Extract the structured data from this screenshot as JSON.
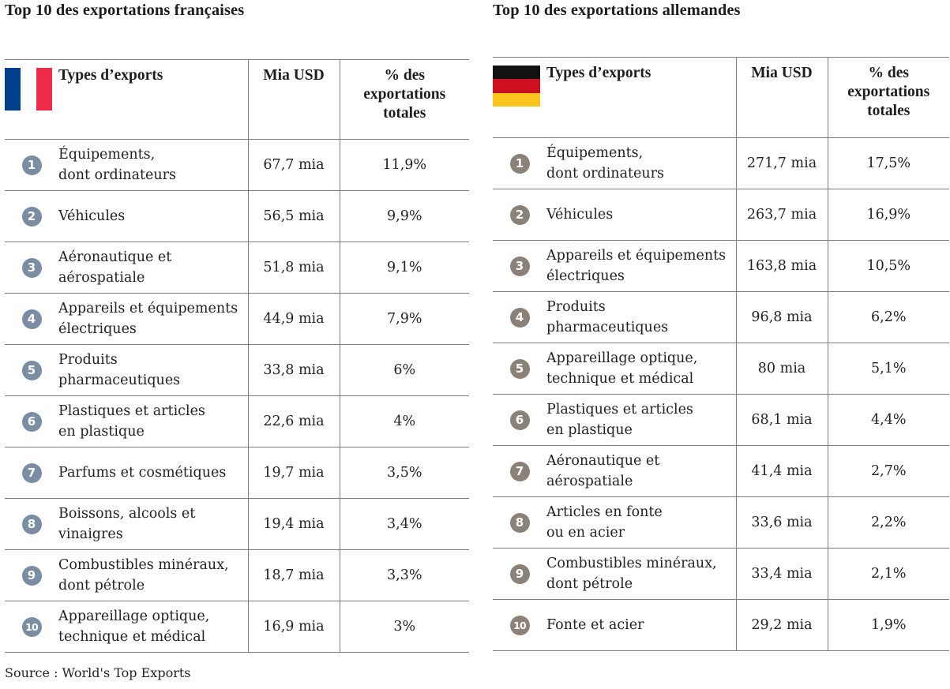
{
  "colors": {
    "flag_fr": [
      "#003f8a",
      "#ffffff",
      "#ee2c4a"
    ],
    "flag_de": [
      "#111111",
      "#cc1020",
      "#f9c51c"
    ],
    "rank_fr": "#7b8da2",
    "rank_de": "#8a8279",
    "rule": "#7d7d7d"
  },
  "france": {
    "title": "Top 10 des exportations françaises",
    "flag_icon": "france-flag-icon",
    "headers": {
      "type": "Types d’exports",
      "mia": "Mia USD",
      "pct": "% des\nexportations\ntotales"
    },
    "rows": [
      {
        "rank": "1",
        "type": "Équipements,\ndont ordinateurs",
        "mia": "67,7 mia",
        "pct": "11,9%"
      },
      {
        "rank": "2",
        "type": "Véhicules",
        "mia": "56,5 mia",
        "pct": "9,9%"
      },
      {
        "rank": "3",
        "type": "Aéronautique et\naérospatiale",
        "mia": "51,8 mia",
        "pct": "9,1%"
      },
      {
        "rank": "4",
        "type": "Appareils et équipements\nélectriques",
        "mia": "44,9 mia",
        "pct": "7,9%"
      },
      {
        "rank": "5",
        "type": "Produits\npharmaceutiques",
        "mia": "33,8 mia",
        "pct": "6%"
      },
      {
        "rank": "6",
        "type": "Plastiques et articles\nen plastique",
        "mia": "22,6 mia",
        "pct": "4%"
      },
      {
        "rank": "7",
        "type": "Parfums et cosmétiques",
        "mia": "19,7 mia",
        "pct": "3,5%"
      },
      {
        "rank": "8",
        "type": "Boissons, alcools et\nvinaigres",
        "mia": "19,4 mia",
        "pct": "3,4%"
      },
      {
        "rank": "9",
        "type": "Combustibles minéraux,\ndont pétrole",
        "mia": "18,7 mia",
        "pct": "3,3%"
      },
      {
        "rank": "10",
        "type": "Appareillage optique,\ntechnique et médical",
        "mia": "16,9 mia",
        "pct": "3%"
      }
    ]
  },
  "germany": {
    "title": "Top 10 des exportations allemandes",
    "flag_icon": "germany-flag-icon",
    "headers": {
      "type": "Types d’exports",
      "mia": "Mia USD",
      "pct": "% des\nexportations\ntotales"
    },
    "rows": [
      {
        "rank": "1",
        "type": "Équipements,\ndont ordinateurs",
        "mia": "271,7 mia",
        "pct": "17,5%"
      },
      {
        "rank": "2",
        "type": "Véhicules",
        "mia": "263,7 mia",
        "pct": "16,9%"
      },
      {
        "rank": "3",
        "type": "Appareils et équipements\nélectriques",
        "mia": "163,8 mia",
        "pct": "10,5%"
      },
      {
        "rank": "4",
        "type": "Produits\npharmaceutiques",
        "mia": "96,8 mia",
        "pct": "6,2%"
      },
      {
        "rank": "5",
        "type": "Appareillage optique,\ntechnique et médical",
        "mia": "80 mia",
        "pct": "5,1%"
      },
      {
        "rank": "6",
        "type": "Plastiques et articles\nen plastique",
        "mia": "68,1 mia",
        "pct": "4,4%"
      },
      {
        "rank": "7",
        "type": "Aéronautique et\naérospatiale",
        "mia": "41,4 mia",
        "pct": "2,7%"
      },
      {
        "rank": "8",
        "type": "Articles en fonte\nou en acier",
        "mia": "33,6 mia",
        "pct": "2,2%"
      },
      {
        "rank": "9",
        "type": "Combustibles minéraux,\ndont pétrole",
        "mia": "33,4 mia",
        "pct": "2,1%"
      },
      {
        "rank": "10",
        "type": "Fonte et acier",
        "mia": "29,2 mia",
        "pct": "1,9%"
      }
    ]
  },
  "source": "Source : World's Top Exports"
}
